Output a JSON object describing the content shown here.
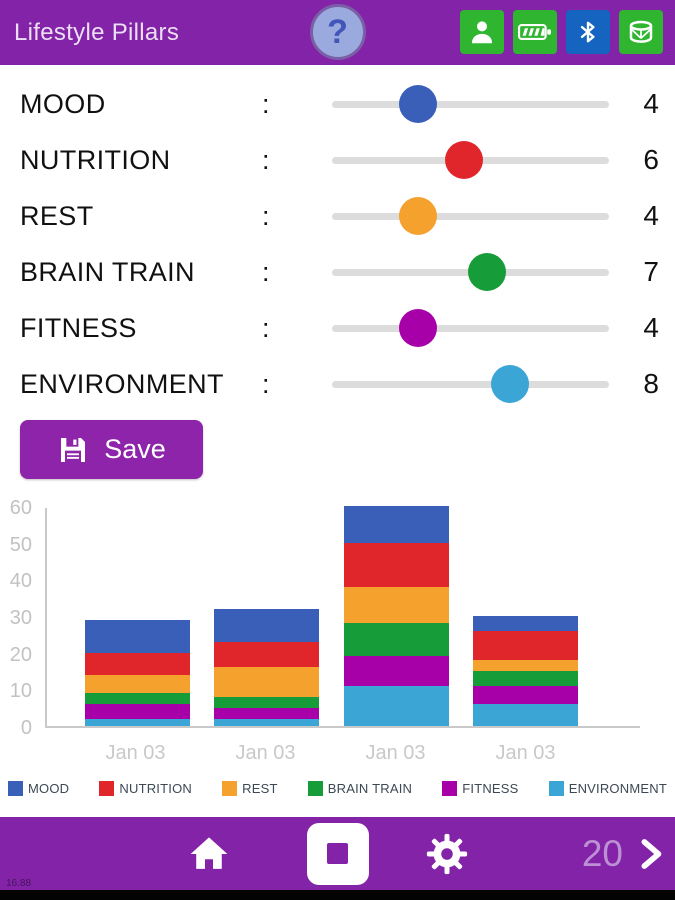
{
  "header": {
    "title": "Lifestyle Pillars",
    "help_label": "?",
    "status_icons": [
      {
        "name": "user-icon",
        "bg": "#2fb52f"
      },
      {
        "name": "battery-icon",
        "bg": "#2fb52f"
      },
      {
        "name": "bluetooth-icon",
        "bg": "#1565c0"
      },
      {
        "name": "drum-icon",
        "bg": "#2fb52f"
      }
    ]
  },
  "ui": {
    "separator": ":"
  },
  "colors": {
    "accent_purple": "#8223a8",
    "save_purple": "#8e24aa",
    "track_gray": "#dcdcdc"
  },
  "sliders": [
    {
      "label": "MOOD",
      "value": 4,
      "color": "#3a5fb8"
    },
    {
      "label": "NUTRITION",
      "value": 6,
      "color": "#e0262b"
    },
    {
      "label": "REST",
      "value": 4,
      "color": "#f5a12e"
    },
    {
      "label": "BRAIN TRAIN",
      "value": 7,
      "color": "#169c38"
    },
    {
      "label": "FITNESS",
      "value": 4,
      "color": "#a800a8"
    },
    {
      "label": "ENVIRONMENT",
      "value": 8,
      "color": "#3ba6d6"
    }
  ],
  "save": {
    "label": "Save"
  },
  "chart_data": {
    "type": "bar",
    "stacked": true,
    "categories": [
      "Jan 03",
      "Jan 03",
      "Jan 03",
      "Jan 03"
    ],
    "series": [
      {
        "name": "MOOD",
        "color": "#3a5fb8",
        "values": [
          9,
          9,
          10,
          4
        ]
      },
      {
        "name": "NUTRITION",
        "color": "#e0262b",
        "values": [
          6,
          7,
          12,
          8
        ]
      },
      {
        "name": "REST",
        "color": "#f5a12e",
        "values": [
          5,
          8,
          10,
          3
        ]
      },
      {
        "name": "BRAIN TRAIN",
        "color": "#169c38",
        "values": [
          3,
          3,
          9,
          4
        ]
      },
      {
        "name": "FITNESS",
        "color": "#a800a8",
        "values": [
          4,
          3,
          8,
          5
        ]
      },
      {
        "name": "ENVIRONMENT",
        "color": "#3ba6d6",
        "values": [
          2,
          2,
          11,
          6
        ]
      }
    ],
    "stack_order_bottom_to_top": [
      "ENVIRONMENT",
      "FITNESS",
      "BRAIN TRAIN",
      "REST",
      "NUTRITION",
      "MOOD"
    ],
    "ylim": [
      0,
      60
    ],
    "yticks": [
      0,
      10,
      20,
      30,
      40,
      50,
      60
    ],
    "xlabel": "",
    "ylabel": "",
    "legend_position": "bottom",
    "grid": false
  },
  "footer": {
    "counter": "20"
  },
  "footnote": "16.88"
}
